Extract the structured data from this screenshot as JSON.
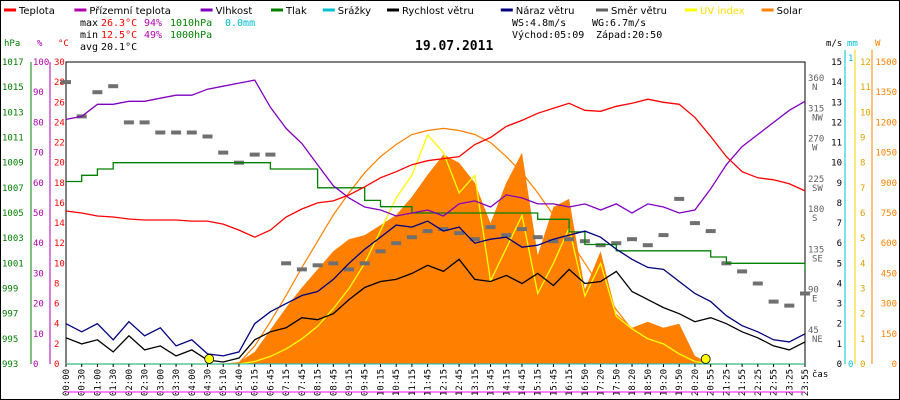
{
  "legend": [
    {
      "label": "Teplota",
      "color": "#ff0000"
    },
    {
      "label": "Přízemní teplota",
      "color": "#b000b0"
    },
    {
      "label": "Vlhkost",
      "color": "#8000c0"
    },
    {
      "label": "Tlak",
      "color": "#008000"
    },
    {
      "label": "Srážky",
      "color": "#00c0d0"
    },
    {
      "label": "Rychlost větru",
      "color": "#000000"
    },
    {
      "label": "Náraz větru",
      "color": "#000080"
    },
    {
      "label": "Směr větru",
      "color": "#606060"
    },
    {
      "label": "UV index",
      "color": "#ffff00"
    },
    {
      "label": "Solar",
      "color": "#ff8000"
    }
  ],
  "stats": {
    "max_label": "max",
    "max_temp": "26.3°C",
    "max_hum": "94%",
    "max_press": "1010hPa",
    "max_rain": "0.0mm",
    "min_label": "min",
    "min_temp": "12.5°C",
    "min_hum": "49%",
    "min_press": "1000hPa",
    "avg_label": "avg",
    "avg_temp": "20.1°C",
    "ws": "WS:4.8m/s",
    "wg": "WG:6.7m/s",
    "sunrise": "Východ:05:09",
    "sunset": "Západ:20:50"
  },
  "chart_data": {
    "type": "line",
    "title": "19.07.2011",
    "xlabel": "čas",
    "x_ticks": [
      "00:00",
      "00:30",
      "01:00",
      "01:30",
      "02:00",
      "02:30",
      "03:00",
      "03:30",
      "04:00",
      "04:30",
      "05:10",
      "05:40",
      "06:15",
      "06:45",
      "07:15",
      "07:45",
      "08:15",
      "08:45",
      "09:15",
      "09:45",
      "10:15",
      "10:45",
      "11:15",
      "11:45",
      "12:15",
      "12:45",
      "13:15",
      "13:45",
      "14:15",
      "14:45",
      "15:15",
      "15:45",
      "16:15",
      "16:50",
      "17:20",
      "17:50",
      "18:20",
      "18:50",
      "19:20",
      "19:50",
      "20:20",
      "20:55",
      "21:25",
      "21:55",
      "22:25",
      "22:55",
      "23:25",
      "23:55"
    ],
    "axes": {
      "hPa": {
        "unit": "hPa",
        "color": "#008000",
        "range": [
          993,
          1017
        ],
        "ticks": [
          "1017",
          "1015",
          "1013",
          "1011",
          "1009",
          "1007",
          "1005",
          "1003",
          "1001",
          "999",
          "997",
          "995",
          "993"
        ]
      },
      "pct": {
        "unit": "%",
        "color": "#b000b0",
        "range": [
          0,
          100
        ],
        "ticks": [
          "100",
          "90",
          "80",
          "70",
          "60",
          "50",
          "40",
          "30",
          "20",
          "10",
          "0"
        ]
      },
      "degC": {
        "unit": "°C",
        "color": "#ff0000",
        "range": [
          0,
          30
        ],
        "ticks": [
          "30",
          "28",
          "26",
          "24",
          "22",
          "20",
          "18",
          "16",
          "14",
          "12",
          "10",
          "8",
          "6",
          "4",
          "2",
          "0"
        ]
      },
      "wind": {
        "unit": "m/s",
        "color": "#000000",
        "range": [
          0,
          15
        ],
        "ticks": [
          "15",
          "14",
          "13",
          "12",
          "11",
          "10",
          "9",
          "8",
          "7",
          "6",
          "5",
          "4",
          "3",
          "2",
          "1",
          "0"
        ]
      },
      "dir": {
        "ticks": [
          {
            "deg": "360",
            "dir": "N",
            "at": 14
          },
          {
            "deg": "315",
            "dir": "NW",
            "at": 12.5
          },
          {
            "deg": "270",
            "dir": "W",
            "at": 11
          },
          {
            "deg": "225",
            "dir": "SW",
            "at": 9
          },
          {
            "deg": "180",
            "dir": "S",
            "at": 7.5
          },
          {
            "deg": "135",
            "dir": "SE",
            "at": 5.5
          },
          {
            "deg": "90",
            "dir": "E",
            "at": 3.5
          },
          {
            "deg": "45",
            "dir": "NE",
            "at": 1.5
          }
        ]
      },
      "rain": {
        "unit": "mm",
        "color": "#00c0d0",
        "range": [
          0,
          1
        ],
        "ticks": [
          "1",
          "0"
        ]
      },
      "uv": {
        "color": "#ffd000",
        "range": [
          0,
          12
        ],
        "ticks": [
          "12",
          "11",
          "10",
          "9",
          "8",
          "7",
          "6",
          "5",
          "4",
          "3",
          "2",
          "1",
          "0"
        ]
      },
      "solar": {
        "unit": "W",
        "color": "#ff8000",
        "range": [
          0,
          1500
        ],
        "ticks": [
          "1500",
          "1350",
          "1200",
          "1050",
          "900",
          "750",
          "600",
          "450",
          "300",
          "150",
          "0"
        ]
      }
    },
    "temperature": [
      15.2,
      15,
      14.7,
      14.6,
      14.4,
      14.3,
      14.3,
      14.3,
      14.2,
      14.2,
      13.9,
      13.3,
      12.6,
      13.3,
      14.6,
      15.4,
      16,
      16.2,
      16.8,
      17.6,
      18.5,
      19.1,
      19.8,
      20.2,
      20.4,
      20.6,
      21.8,
      22.5,
      23.6,
      24.2,
      24.9,
      25.4,
      25.9,
      25.2,
      25.1,
      25.6,
      25.9,
      26.3,
      26,
      25.8,
      24.5,
      22.6,
      20.6,
      19.1,
      18.5,
      18.3,
      17.9,
      17.2
    ],
    "humidity": [
      81,
      82,
      86,
      86,
      87,
      87,
      88,
      89,
      89,
      91,
      92,
      93,
      94,
      85,
      78,
      73,
      66,
      59,
      55,
      52,
      51,
      49,
      50,
      51,
      49,
      53,
      54,
      52,
      56,
      55,
      53,
      53,
      52,
      53,
      51,
      53,
      50,
      53,
      52,
      50,
      51,
      58,
      66,
      72,
      76,
      80,
      84,
      87
    ],
    "pressure": [
      1007.5,
      1008,
      1008.5,
      1009,
      1009,
      1009,
      1009,
      1009,
      1009,
      1009,
      1009,
      1009,
      1009,
      1008.5,
      1008.5,
      1008.5,
      1007,
      1007,
      1007,
      1006,
      1005.5,
      1005.5,
      1005,
      1005,
      1005,
      1005,
      1005,
      1005,
      1005,
      1005,
      1004.5,
      1004.5,
      1003.5,
      1002.5,
      1002.5,
      1002,
      1002,
      1002,
      1002,
      1002,
      1002,
      1001.5,
      1001,
      1001,
      1001,
      1001,
      1001,
      1000.5
    ],
    "rain": [
      0,
      0,
      0,
      0,
      0,
      0,
      0,
      0,
      0,
      0,
      0,
      0,
      0,
      0,
      0,
      0,
      0,
      0,
      0,
      0,
      0,
      0,
      0,
      0,
      0,
      0,
      0,
      0,
      0,
      0,
      0,
      0,
      0,
      0,
      0,
      0,
      0,
      0,
      0,
      0,
      0,
      0,
      0,
      0,
      0,
      0,
      0,
      0
    ],
    "wind_speed": [
      1.3,
      1,
      1.2,
      0.6,
      1.4,
      0.7,
      0.9,
      0.4,
      0.7,
      0.2,
      0.1,
      0.3,
      1.2,
      1.6,
      1.8,
      2.3,
      2.2,
      2.5,
      3.2,
      3.8,
      4.1,
      4.2,
      4.5,
      4.9,
      4.6,
      5.2,
      4.2,
      4.1,
      4.4,
      4,
      4.5,
      3.9,
      4.7,
      4,
      4.1,
      4.6,
      3.6,
      3.2,
      2.8,
      2.5,
      2.1,
      2.3,
      2,
      1.6,
      1.3,
      0.9,
      0.7,
      1.1
    ],
    "wind_gust": [
      2,
      1.6,
      2,
      1.2,
      2.1,
      1.4,
      1.8,
      0.9,
      1.2,
      0.5,
      0.4,
      0.6,
      2,
      2.6,
      3,
      3.4,
      3.6,
      4.2,
      5,
      5.7,
      6.3,
      6.9,
      6.8,
      7.1,
      6.6,
      6.8,
      6,
      6.2,
      6.3,
      5.8,
      5.9,
      6.2,
      6.4,
      6.6,
      6.3,
      5.7,
      5.2,
      4.8,
      4.7,
      4.1,
      3.5,
      3.1,
      2.4,
      1.9,
      1.6,
      1.2,
      1.1,
      1.5
    ],
    "wind_dir": [
      14,
      12.3,
      13.5,
      13.8,
      12,
      12,
      11.5,
      11.5,
      11.5,
      11.3,
      10.5,
      10,
      10.4,
      10.4,
      5,
      4.7,
      4.9,
      5,
      4.7,
      5,
      5.6,
      6,
      6.3,
      6.6,
      6.7,
      6.5,
      6.2,
      6.8,
      6.4,
      6.7,
      6.3,
      6.1,
      6.2,
      6.1,
      5.9,
      6,
      6.2,
      5.9,
      6.4,
      8.2,
      7,
      6.6,
      5,
      4.6,
      4,
      3.1,
      2.9,
      3.5
    ],
    "uv_index": [
      0,
      0,
      0,
      0,
      0,
      0,
      0,
      0,
      0,
      0,
      0,
      0,
      0.1,
      0.3,
      0.6,
      1,
      1.5,
      2.2,
      3,
      4,
      5.3,
      6.6,
      7.5,
      9.1,
      8.4,
      6.8,
      7.5,
      3.3,
      4.6,
      5.9,
      2.8,
      4,
      5.4,
      2.7,
      4,
      1.9,
      1.4,
      1,
      0.8,
      0.4,
      0.1,
      0,
      0,
      0,
      0,
      0,
      0,
      0
    ],
    "solar_actual": [
      0,
      0,
      0,
      0,
      0,
      0,
      0,
      0,
      0,
      0,
      0,
      10,
      60,
      170,
      280,
      380,
      470,
      560,
      620,
      640,
      690,
      740,
      830,
      940,
      1040,
      1000,
      900,
      700,
      900,
      1050,
      540,
      780,
      820,
      370,
      560,
      250,
      180,
      210,
      180,
      200,
      40,
      0,
      0,
      0,
      0,
      0,
      0,
      0
    ],
    "solar_theoretical": [
      0,
      0,
      0,
      0,
      0,
      0,
      0,
      0,
      0,
      0,
      0,
      5,
      90,
      210,
      340,
      480,
      610,
      740,
      850,
      950,
      1030,
      1090,
      1140,
      1160,
      1170,
      1160,
      1140,
      1100,
      1030,
      950,
      850,
      740,
      620,
      500,
      380,
      270,
      170,
      90,
      30,
      5,
      0,
      0,
      0,
      0,
      0,
      0,
      0,
      0
    ],
    "markers": [
      {
        "label": "sunrise",
        "time": "05:09"
      },
      {
        "label": "sunset",
        "time": "20:50"
      }
    ]
  }
}
